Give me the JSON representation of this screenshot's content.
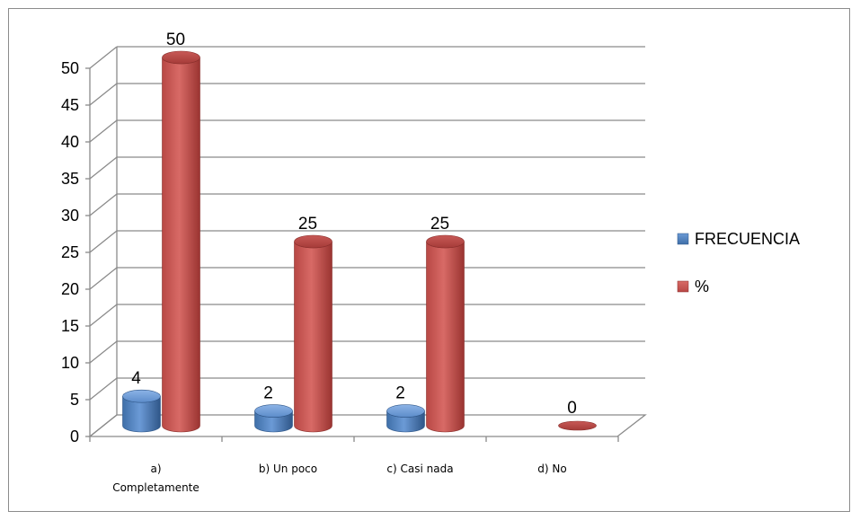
{
  "chart_data": {
    "type": "bar",
    "title": "",
    "xlabel": "",
    "ylabel": "",
    "ylim": [
      0,
      50
    ],
    "ytick_step": 5,
    "yticks": [
      "0",
      "5",
      "10",
      "15",
      "20",
      "25",
      "30",
      "35",
      "40",
      "45",
      "50"
    ],
    "categories": [
      [
        "a)",
        "Completamente"
      ],
      [
        "b) Un poco"
      ],
      [
        "c) Casi nada"
      ],
      [
        "d) No"
      ]
    ],
    "series": [
      {
        "name": "FRECUENCIA",
        "values": [
          4,
          2,
          2,
          0
        ],
        "labels": [
          "4",
          "2",
          "2",
          ""
        ],
        "color": "#4a7ebb"
      },
      {
        "name": "%",
        "values": [
          50,
          25,
          25,
          0
        ],
        "labels": [
          "50",
          "25",
          "25",
          "0"
        ],
        "color": "#c0504d"
      }
    ],
    "grid": true,
    "legend_position": "right",
    "style": "3d-cylinder"
  }
}
